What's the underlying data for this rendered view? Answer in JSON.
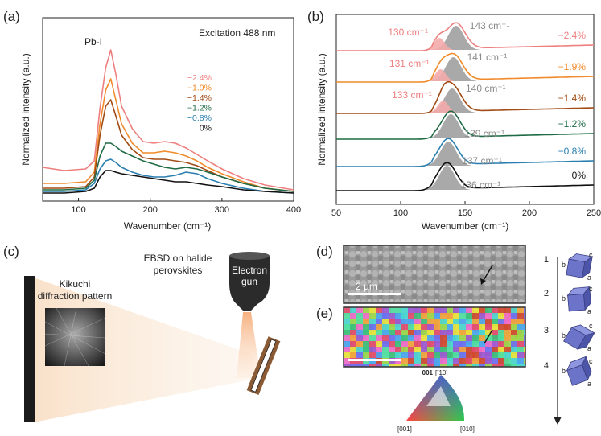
{
  "panels": {
    "a": {
      "label": "(a)"
    },
    "b": {
      "label": "(b)"
    },
    "c": {
      "label": "(c)"
    },
    "d": {
      "label": "(d)"
    },
    "e": {
      "label": "(e)"
    }
  },
  "chart_data": [
    {
      "id": "a",
      "type": "line",
      "xlabel": "Wavenumber (cm⁻¹)",
      "ylabel": "Normalized intensity (a.u.)",
      "xlim": [
        50,
        400
      ],
      "xticks": [
        100,
        200,
        300,
        400
      ],
      "annotation": "Excitation 488 nm",
      "peak_label": "Pb-I",
      "series": [
        {
          "name": "−2.4%",
          "color": "#ee7f7f",
          "x": [
            50,
            80,
            110,
            122,
            130,
            138,
            145,
            152,
            160,
            175,
            190,
            205,
            220,
            235,
            250,
            265,
            280,
            300,
            330,
            360,
            400
          ],
          "y": [
            0.18,
            0.16,
            0.17,
            0.22,
            0.55,
            0.8,
            0.91,
            0.76,
            0.56,
            0.42,
            0.34,
            0.33,
            0.34,
            0.33,
            0.3,
            0.26,
            0.22,
            0.17,
            0.11,
            0.07,
            0.04
          ]
        },
        {
          "name": "−1.9%",
          "color": "#f08a2a",
          "x": [
            50,
            80,
            110,
            122,
            130,
            138,
            145,
            152,
            160,
            175,
            190,
            205,
            220,
            235,
            250,
            265,
            280,
            300,
            330,
            360,
            400
          ],
          "y": [
            0.08,
            0.08,
            0.09,
            0.15,
            0.45,
            0.66,
            0.73,
            0.6,
            0.45,
            0.33,
            0.27,
            0.27,
            0.28,
            0.27,
            0.25,
            0.22,
            0.18,
            0.14,
            0.09,
            0.05,
            0.03
          ]
        },
        {
          "name": "−1.4%",
          "color": "#a24b14",
          "x": [
            50,
            80,
            110,
            122,
            130,
            138,
            145,
            152,
            160,
            175,
            190,
            205,
            220,
            235,
            250,
            265,
            280,
            300,
            330,
            360,
            400
          ],
          "y": [
            0.05,
            0.05,
            0.06,
            0.12,
            0.38,
            0.56,
            0.6,
            0.5,
            0.38,
            0.29,
            0.24,
            0.23,
            0.23,
            0.22,
            0.21,
            0.19,
            0.16,
            0.12,
            0.08,
            0.05,
            0.03
          ]
        },
        {
          "name": "−1.2%",
          "color": "#1f6b45",
          "x": [
            50,
            80,
            110,
            122,
            130,
            138,
            145,
            152,
            160,
            175,
            190,
            205,
            220,
            235,
            250,
            265,
            280,
            300,
            330,
            360,
            400
          ],
          "y": [
            0.04,
            0.04,
            0.05,
            0.1,
            0.25,
            0.33,
            0.33,
            0.31,
            0.28,
            0.25,
            0.22,
            0.2,
            0.18,
            0.17,
            0.18,
            0.17,
            0.15,
            0.12,
            0.08,
            0.05,
            0.03
          ]
        },
        {
          "name": "−0.8%",
          "color": "#2a7fb0",
          "x": [
            50,
            80,
            110,
            122,
            130,
            138,
            145,
            152,
            160,
            175,
            190,
            205,
            220,
            235,
            250,
            265,
            280,
            300,
            330,
            360,
            400
          ],
          "y": [
            0.03,
            0.03,
            0.04,
            0.08,
            0.17,
            0.22,
            0.23,
            0.21,
            0.18,
            0.15,
            0.13,
            0.12,
            0.12,
            0.13,
            0.15,
            0.14,
            0.11,
            0.08,
            0.05,
            0.03,
            0.02
          ]
        },
        {
          "name": "0%",
          "color": "#111111",
          "x": [
            50,
            80,
            110,
            122,
            130,
            138,
            145,
            152,
            160,
            175,
            190,
            205,
            220,
            235,
            250,
            265,
            280,
            300,
            330,
            360,
            400
          ],
          "y": [
            0.02,
            0.02,
            0.03,
            0.05,
            0.12,
            0.16,
            0.16,
            0.15,
            0.14,
            0.13,
            0.12,
            0.11,
            0.1,
            0.09,
            0.09,
            0.08,
            0.07,
            0.06,
            0.04,
            0.03,
            0.02
          ]
        }
      ]
    },
    {
      "id": "b",
      "type": "line",
      "xlabel": "Wavenumber (cm⁻¹)",
      "ylabel": "Normalized intensity (a.u.)",
      "xlim": [
        50,
        250
      ],
      "xticks": [
        50,
        100,
        150,
        200,
        250
      ],
      "series": [
        {
          "name": "−2.4%",
          "color": "#ee7f7f",
          "peak1": {
            "label": "130 cm⁻¹",
            "center": 130
          },
          "peak2": {
            "label": "143 cm⁻¹",
            "center": 143
          }
        },
        {
          "name": "−1.9%",
          "color": "#f08a2a",
          "peak1": {
            "label": "131 cm⁻¹",
            "center": 131
          },
          "peak2": {
            "label": "141 cm⁻¹",
            "center": 141
          }
        },
        {
          "name": "−1.4%",
          "color": "#a24b14",
          "peak1": {
            "label": "133 cm⁻¹",
            "center": 133
          },
          "peak2": {
            "label": "140 cm⁻¹",
            "center": 140
          }
        },
        {
          "name": "−1.2%",
          "color": "#1f6b45",
          "peak2": {
            "label": "139 cm⁻¹",
            "center": 139
          }
        },
        {
          "name": "−0.8%",
          "color": "#2a7fb0",
          "peak2": {
            "label": "137 cm⁻¹",
            "center": 137
          }
        },
        {
          "name": "0%",
          "color": "#111111",
          "peak2": {
            "label": "136 cm⁻¹",
            "center": 136
          }
        }
      ]
    }
  ],
  "panel_c": {
    "title_line1": "EBSD on halide",
    "title_line2": "perovskites",
    "gun_line1": "Electron",
    "gun_line2": "gun",
    "pattern_line1": "Kikuchi",
    "pattern_line2": "diffraction pattern"
  },
  "panel_d": {
    "scale": "2 µm"
  },
  "panel_e": {
    "ipf_top": "001",
    "ipf_top2": "[ī10]",
    "ipf_left": "[001]",
    "ipf_right": "[010]"
  },
  "orientations": [
    {
      "num": "1",
      "a": "a",
      "b": "b",
      "c": "c"
    },
    {
      "num": "2",
      "a": "a",
      "b": "b",
      "c": "c"
    },
    {
      "num": "3",
      "a": "a",
      "b": "b",
      "c": "c"
    },
    {
      "num": "4",
      "a": "a",
      "b": "b",
      "c": "c"
    }
  ]
}
